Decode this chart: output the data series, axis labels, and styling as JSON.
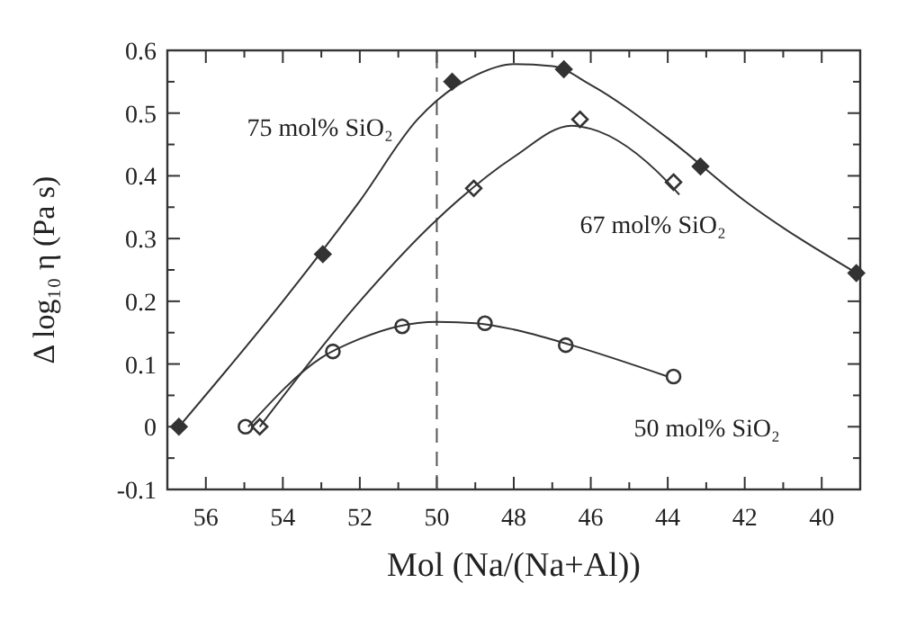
{
  "chart_data": {
    "type": "scatter",
    "xlabel": "Mol (Na/(Na+Al))",
    "ylabel": "Δ log₁₀ η (Pa s)",
    "xlim": [
      57,
      39
    ],
    "ylim": [
      -0.1,
      0.6
    ],
    "xticks": [
      {
        "value": 57,
        "label": null
      },
      56,
      {
        "value": 55,
        "label": null
      },
      54,
      {
        "value": 53,
        "label": null
      },
      52,
      {
        "value": 51,
        "label": null
      },
      50,
      {
        "value": 49,
        "label": null
      },
      48,
      {
        "value": 47,
        "label": null
      },
      46,
      {
        "value": 45,
        "label": null
      },
      44,
      {
        "value": 43,
        "label": null
      },
      42,
      {
        "value": 41,
        "label": null
      },
      40,
      {
        "value": 39,
        "label": null
      }
    ],
    "yticks": [
      -0.1,
      {
        "value": -0.05,
        "label": null
      },
      0,
      {
        "value": 0.05,
        "label": null
      },
      0.1,
      {
        "value": 0.15,
        "label": null
      },
      0.2,
      {
        "value": 0.25,
        "label": null
      },
      0.3,
      {
        "value": 0.35,
        "label": null
      },
      0.4,
      {
        "value": 0.45,
        "label": null
      },
      0.5,
      {
        "value": 0.55,
        "label": null
      },
      0.6
    ],
    "grid": false,
    "ref_lines": [
      {
        "axis": "x",
        "value": 50,
        "line_style": "dashed",
        "color": "#555555"
      }
    ],
    "series": [
      {
        "name": "75 mol% SiO₂",
        "color": "#333333",
        "marker": "diamond",
        "x": [
          56.7,
          52.96,
          49.6,
          46.7,
          43.15,
          39.1
        ],
        "values": [
          0,
          0.275,
          0.55,
          0.57,
          0.415,
          0.245
        ]
      },
      {
        "name": "67 mol% SiO₂",
        "color": "#333333",
        "marker": "diamond",
        "x": [
          54.6,
          49.04,
          46.28,
          43.85
        ],
        "values": [
          0,
          0.38,
          0.49,
          0.39
        ]
      },
      {
        "name": "50 mol% SiO₂",
        "color": "#333333",
        "marker": "circle",
        "x": [
          54.97,
          52.7,
          50.9,
          48.75,
          46.65,
          43.85
        ],
        "values": [
          0,
          0.12,
          0.16,
          0.165,
          0.13,
          0.08
        ]
      },
      {
        "type": "line",
        "color": "#333333",
        "x": [
          56.7,
          54,
          52,
          50.5,
          50,
          49,
          48,
          47,
          46,
          44,
          42,
          39.1
        ],
        "values": [
          0,
          0.2,
          0.36,
          0.49,
          0.52,
          0.56,
          0.578,
          0.575,
          0.545,
          0.46,
          0.36,
          0.245
        ]
      },
      {
        "type": "line",
        "color": "#333333",
        "x": [
          54.6,
          52,
          50,
          48,
          46.5,
          46,
          44,
          43.7
        ],
        "values": [
          0,
          0.2,
          0.33,
          0.43,
          0.48,
          0.475,
          0.39,
          0.37
        ]
      },
      {
        "type": "line",
        "color": "#333333",
        "x": [
          54.9,
          53,
          52,
          51,
          50,
          49,
          48,
          46.5,
          44
        ],
        "values": [
          0,
          0.11,
          0.14,
          0.16,
          0.167,
          0.165,
          0.155,
          0.13,
          0.08
        ]
      }
    ]
  }
}
